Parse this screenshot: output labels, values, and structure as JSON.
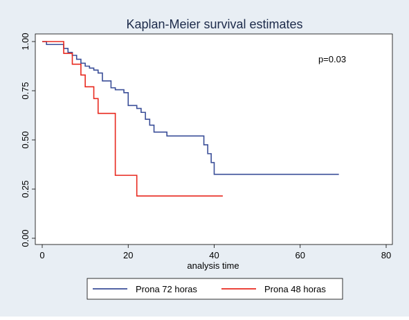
{
  "chart_data": {
    "type": "line",
    "title": "Kaplan-Meier survival estimates",
    "xlabel": "analysis time",
    "ylabel": "",
    "xlim": [
      0,
      80
    ],
    "ylim": [
      0,
      1
    ],
    "x_ticks": [
      "0",
      "20",
      "40",
      "60",
      "80"
    ],
    "x_tick_values": [
      0,
      20,
      40,
      60,
      80
    ],
    "y_ticks": [
      "0.00",
      "0.25",
      "0.50",
      "0.75",
      "1.00"
    ],
    "y_tick_values": [
      0,
      0.25,
      0.5,
      0.75,
      1.0
    ],
    "annotation": "p=0.03",
    "legend_position": "bottom",
    "series": [
      {
        "name": "Prona 72 horas",
        "color": "#3a4e98",
        "step": true,
        "x": [
          0,
          1,
          5,
          6,
          7,
          8,
          9,
          10,
          11,
          12,
          13,
          14,
          16,
          17,
          19,
          20,
          22,
          23,
          24,
          25,
          26,
          29,
          37,
          37.6,
          38.5,
          39.3,
          40,
          69
        ],
        "y": [
          1.0,
          0.985,
          0.965,
          0.945,
          0.93,
          0.91,
          0.89,
          0.875,
          0.865,
          0.855,
          0.84,
          0.8,
          0.765,
          0.755,
          0.74,
          0.675,
          0.66,
          0.64,
          0.605,
          0.575,
          0.54,
          0.52,
          0.52,
          0.475,
          0.43,
          0.385,
          0.325,
          0.325
        ]
      },
      {
        "name": "Prona 48 horas",
        "color": "#e8281e",
        "step": true,
        "x": [
          0,
          5,
          7,
          9,
          10,
          12,
          13,
          17,
          22,
          42
        ],
        "y": [
          1.0,
          0.94,
          0.885,
          0.83,
          0.77,
          0.71,
          0.635,
          0.32,
          0.215,
          0.215
        ]
      }
    ]
  }
}
